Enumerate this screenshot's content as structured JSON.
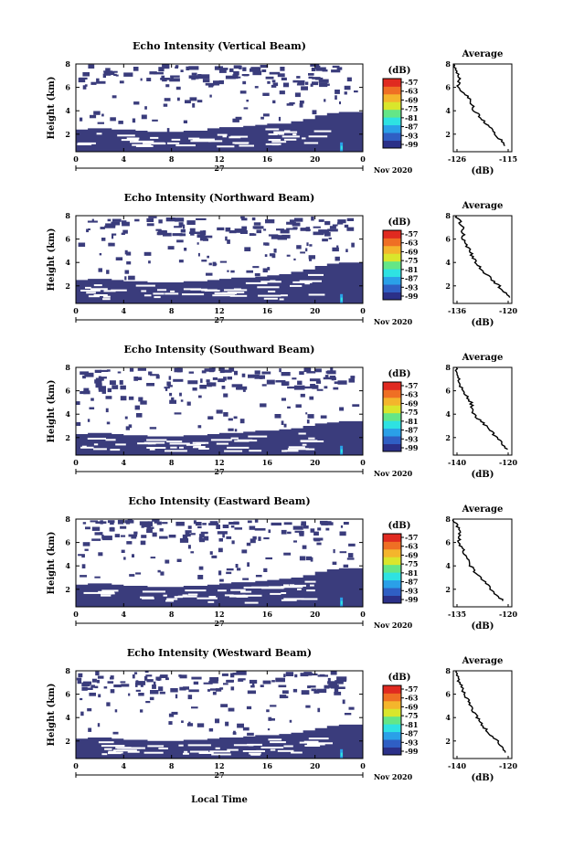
{
  "figure": {
    "xaxis_title": "Local Time",
    "x_ticks": [
      "0",
      "4",
      "8",
      "12",
      "16",
      "20",
      "0"
    ],
    "date_label": "27",
    "month_label": "Nov 2020",
    "ylabel": "Height (km)",
    "y_ticks": [
      "8",
      "6",
      "4",
      "2"
    ],
    "colorbar_unit": "(dB)",
    "colorbar_ticks": [
      "-57",
      "-63",
      "-69",
      "-75",
      "-81",
      "-87",
      "-93",
      "-99"
    ],
    "colorbar_colors": [
      "#2b3088",
      "#2f5fc4",
      "#2aa0e8",
      "#2ee2e2",
      "#64e687",
      "#d9e62c",
      "#f4b52c",
      "#ef6f24",
      "#e02a20"
    ],
    "mask_color": "#3a3c7c",
    "avg_title": "Average",
    "avg_xlabel": "(dB)"
  },
  "chart_data": [
    {
      "type": "heatmap",
      "title": "Echo Intensity (Vertical Beam)",
      "xlabel": "Local Time",
      "ylabel": "Height (km)",
      "x_range_hours": [
        0,
        24
      ],
      "y_range_km": [
        0.5,
        8.0
      ],
      "colorbar_range_db": [
        -99,
        -57
      ],
      "echo_layer_top_km": [
        2.4,
        2.5,
        2.5,
        2.4,
        2.4,
        2.3,
        2.2,
        2.2,
        2.2,
        2.3,
        2.3,
        2.5,
        2.6,
        2.6,
        2.7,
        2.8,
        2.9,
        2.9,
        3.1,
        3.3,
        3.6,
        3.8,
        3.9,
        3.9
      ],
      "avg_profile": {
        "xlim": [
          -126,
          -115
        ],
        "xticks": [
          "-126",
          "-115"
        ],
        "heights_km": [
          1.0,
          2.0,
          3.0,
          4.0,
          5.0,
          6.0,
          7.0,
          8.0
        ],
        "values_db": [
          -116,
          -118,
          -120,
          -122,
          -123,
          -125,
          -125,
          -126
        ]
      }
    },
    {
      "type": "heatmap",
      "title": "Echo Intensity (Northward Beam)",
      "xlabel": "Local Time",
      "ylabel": "Height (km)",
      "x_range_hours": [
        0,
        24
      ],
      "y_range_km": [
        0.5,
        8.0
      ],
      "colorbar_range_db": [
        -99,
        -57
      ],
      "echo_layer_top_km": [
        2.5,
        2.6,
        2.6,
        2.5,
        2.4,
        2.4,
        2.3,
        2.3,
        2.3,
        2.4,
        2.4,
        2.5,
        2.6,
        2.7,
        2.7,
        2.8,
        2.9,
        3.0,
        3.2,
        3.4,
        3.7,
        3.9,
        4.0,
        4.0
      ],
      "avg_profile": {
        "xlim": [
          -138,
          -120
        ],
        "xticks": [
          "-136",
          "-120"
        ],
        "heights_km": [
          1.0,
          2.0,
          3.0,
          4.0,
          5.0,
          6.0,
          7.0,
          8.0
        ],
        "values_db": [
          -121,
          -124,
          -128,
          -131,
          -133,
          -135,
          -135,
          -137
        ]
      }
    },
    {
      "type": "heatmap",
      "title": "Echo Intensity (Southward Beam)",
      "xlabel": "Local Time",
      "ylabel": "Height (km)",
      "x_range_hours": [
        0,
        24
      ],
      "y_range_km": [
        0.5,
        8.0
      ],
      "colorbar_range_db": [
        -99,
        -57
      ],
      "echo_layer_top_km": [
        2.3,
        2.4,
        2.4,
        2.3,
        2.2,
        2.2,
        2.1,
        2.1,
        2.1,
        2.2,
        2.2,
        2.3,
        2.4,
        2.4,
        2.5,
        2.6,
        2.6,
        2.7,
        2.8,
        3.0,
        3.2,
        3.3,
        3.4,
        3.4
      ],
      "avg_profile": {
        "xlim": [
          -141,
          -121
        ],
        "xticks": [
          "-140",
          "-120"
        ],
        "heights_km": [
          1.0,
          2.0,
          3.0,
          4.0,
          5.0,
          6.0,
          7.0,
          8.0
        ],
        "values_db": [
          -123,
          -126,
          -130,
          -134,
          -135,
          -138,
          -139,
          -140
        ]
      }
    },
    {
      "type": "heatmap",
      "title": "Echo Intensity (Eastward Beam)",
      "xlabel": "Local Time",
      "ylabel": "Height (km)",
      "x_range_hours": [
        0,
        24
      ],
      "y_range_km": [
        0.5,
        8.0
      ],
      "colorbar_range_db": [
        -99,
        -57
      ],
      "echo_layer_top_km": [
        2.4,
        2.5,
        2.5,
        2.4,
        2.3,
        2.3,
        2.2,
        2.2,
        2.2,
        2.3,
        2.3,
        2.4,
        2.5,
        2.6,
        2.6,
        2.7,
        2.8,
        2.9,
        3.0,
        3.2,
        3.5,
        3.7,
        3.8,
        3.8
      ],
      "avg_profile": {
        "xlim": [
          -138,
          -118
        ],
        "xticks": [
          "-135",
          "-120"
        ],
        "heights_km": [
          1.0,
          2.0,
          3.0,
          4.0,
          5.0,
          6.0,
          7.0,
          8.0
        ],
        "values_db": [
          -121,
          -125,
          -129,
          -132,
          -134,
          -136,
          -136,
          -138
        ]
      }
    },
    {
      "type": "heatmap",
      "title": "Echo Intensity (Westward Beam)",
      "xlabel": "Local Time",
      "ylabel": "Height (km)",
      "x_range_hours": [
        0,
        24
      ],
      "y_range_km": [
        0.5,
        8.0
      ],
      "colorbar_range_db": [
        -99,
        -57
      ],
      "echo_layer_top_km": [
        2.2,
        2.3,
        2.3,
        2.2,
        2.1,
        2.1,
        2.0,
        2.0,
        2.0,
        2.1,
        2.1,
        2.2,
        2.3,
        2.3,
        2.4,
        2.5,
        2.5,
        2.6,
        2.7,
        2.9,
        3.1,
        3.3,
        3.4,
        3.4
      ],
      "avg_profile": {
        "xlim": [
          -141,
          -121
        ],
        "xticks": [
          "-140",
          "-120"
        ],
        "heights_km": [
          1.0,
          2.0,
          3.0,
          4.0,
          5.0,
          6.0,
          7.0,
          8.0
        ],
        "values_db": [
          -123,
          -126,
          -130,
          -133,
          -135,
          -137,
          -139,
          -140
        ]
      }
    }
  ]
}
